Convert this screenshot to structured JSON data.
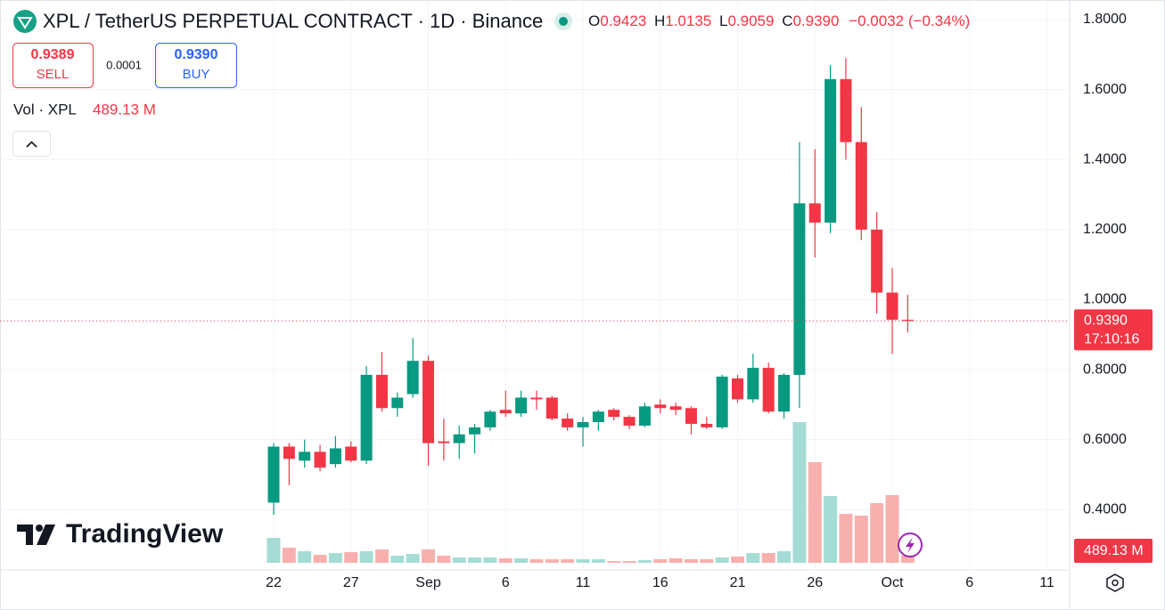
{
  "ui": {
    "symbol_title": "XPL / TetherUS PERPETUAL CONTRACT · 1D · Binance",
    "ohlc": [
      {
        "key": "O",
        "value": "0.9423"
      },
      {
        "key": "H",
        "value": "1.0135"
      },
      {
        "key": "L",
        "value": "0.9059"
      },
      {
        "key": "C",
        "value": "0.9390"
      }
    ],
    "change": "−0.0032 (−0.34%)",
    "sell": {
      "price": "0.9389",
      "label": "SELL"
    },
    "spread": "0.0001",
    "buy": {
      "price": "0.9390",
      "label": "BUY"
    },
    "logo": "TradingView"
  },
  "chart_data": {
    "type": "candlestick",
    "categories": [
      "22",
      null,
      null,
      null,
      null,
      "27",
      null,
      null,
      null,
      null,
      "Sep",
      null,
      null,
      null,
      null,
      "6",
      null,
      null,
      null,
      null,
      "11",
      null,
      null,
      null,
      null,
      "16",
      null,
      null,
      null,
      null,
      "21",
      null,
      null,
      null,
      null,
      "26",
      null,
      null,
      null,
      null,
      "Oct",
      null,
      null,
      null,
      null,
      "6",
      null,
      null,
      null,
      null,
      "11"
    ],
    "open": [
      0.42,
      0.58,
      0.54,
      0.565,
      0.53,
      0.58,
      0.54,
      0.785,
      0.69,
      0.73,
      0.825,
      0.595,
      0.59,
      0.615,
      0.635,
      0.685,
      0.675,
      0.72,
      0.72,
      0.66,
      0.635,
      0.65,
      0.685,
      0.665,
      0.64,
      0.7,
      0.695,
      0.69,
      0.645,
      0.635,
      0.775,
      0.715,
      0.805,
      0.68,
      0.785,
      1.275,
      1.22,
      1.63,
      1.45,
      1.2,
      1.02,
      0.9423,
      null,
      null,
      null,
      null,
      null,
      null,
      null,
      null,
      null
    ],
    "high": [
      0.59,
      0.59,
      0.6,
      0.585,
      0.61,
      0.595,
      0.81,
      0.85,
      0.735,
      0.89,
      0.84,
      0.66,
      0.64,
      0.645,
      0.685,
      0.74,
      0.74,
      0.74,
      0.725,
      0.675,
      0.665,
      0.685,
      0.69,
      0.67,
      0.705,
      0.715,
      0.705,
      0.695,
      0.665,
      0.785,
      0.785,
      0.845,
      0.82,
      0.79,
      1.45,
      1.43,
      1.67,
      1.69,
      1.55,
      1.25,
      1.09,
      1.0135,
      null,
      null,
      null,
      null,
      null,
      null,
      null,
      null,
      null
    ],
    "low": [
      0.385,
      0.47,
      0.52,
      0.51,
      0.52,
      0.535,
      0.53,
      0.68,
      0.665,
      0.72,
      0.525,
      0.54,
      0.545,
      0.56,
      0.625,
      0.665,
      0.665,
      0.685,
      0.655,
      0.625,
      0.58,
      0.625,
      0.655,
      0.63,
      0.635,
      0.675,
      0.67,
      0.615,
      0.63,
      0.63,
      0.705,
      0.705,
      0.675,
      0.66,
      0.69,
      1.12,
      1.19,
      1.4,
      1.17,
      0.96,
      0.845,
      0.9059,
      null,
      null,
      null,
      null,
      null,
      null,
      null,
      null,
      null
    ],
    "close": [
      0.58,
      0.545,
      0.565,
      0.52,
      0.575,
      0.54,
      0.785,
      0.69,
      0.72,
      0.825,
      0.59,
      0.59,
      0.615,
      0.635,
      0.68,
      0.675,
      0.72,
      0.715,
      0.66,
      0.635,
      0.65,
      0.68,
      0.665,
      0.64,
      0.695,
      0.69,
      0.685,
      0.645,
      0.635,
      0.78,
      0.715,
      0.805,
      0.68,
      0.785,
      1.275,
      1.22,
      1.63,
      1.45,
      1.2,
      1.02,
      0.9423,
      0.939,
      null,
      null,
      null,
      null,
      null,
      null,
      null,
      null,
      null
    ],
    "volume": {
      "name": "Vol · XPL",
      "last_label": "489.13 M",
      "values": [
        1710,
        1040,
        800,
        550,
        670,
        730,
        800,
        920,
        490,
        610,
        920,
        490,
        370,
        370,
        370,
        310,
        310,
        245,
        245,
        245,
        245,
        245,
        120,
        120,
        185,
        245,
        310,
        245,
        245,
        370,
        430,
        670,
        670,
        800,
        9660,
        6910,
        4590,
        3360,
        3240,
        4100,
        4650,
        489.13,
        null,
        null,
        null,
        null,
        null,
        null,
        null,
        null,
        null
      ],
      "up_color": "#a5dcd5",
      "down_color": "#f8b0ae"
    },
    "last_price": {
      "value": 0.939,
      "label": "0.9390",
      "countdown": "17:10:16"
    },
    "ylim": [
      0.248,
      1.856
    ],
    "yticks": [
      {
        "value": 0.4,
        "label": "0.4000"
      },
      {
        "value": 0.6,
        "label": "0.6000"
      },
      {
        "value": 0.8,
        "label": "0.8000"
      },
      {
        "value": 1.0,
        "label": "1.0000"
      },
      {
        "value": 1.2,
        "label": "1.2000"
      },
      {
        "value": 1.4,
        "label": "1.4000"
      },
      {
        "value": 1.6,
        "label": "1.6000"
      },
      {
        "value": 1.8,
        "label": "1.8000"
      }
    ],
    "grid": true,
    "up_color": "#089981",
    "down_color": "#f23645"
  }
}
